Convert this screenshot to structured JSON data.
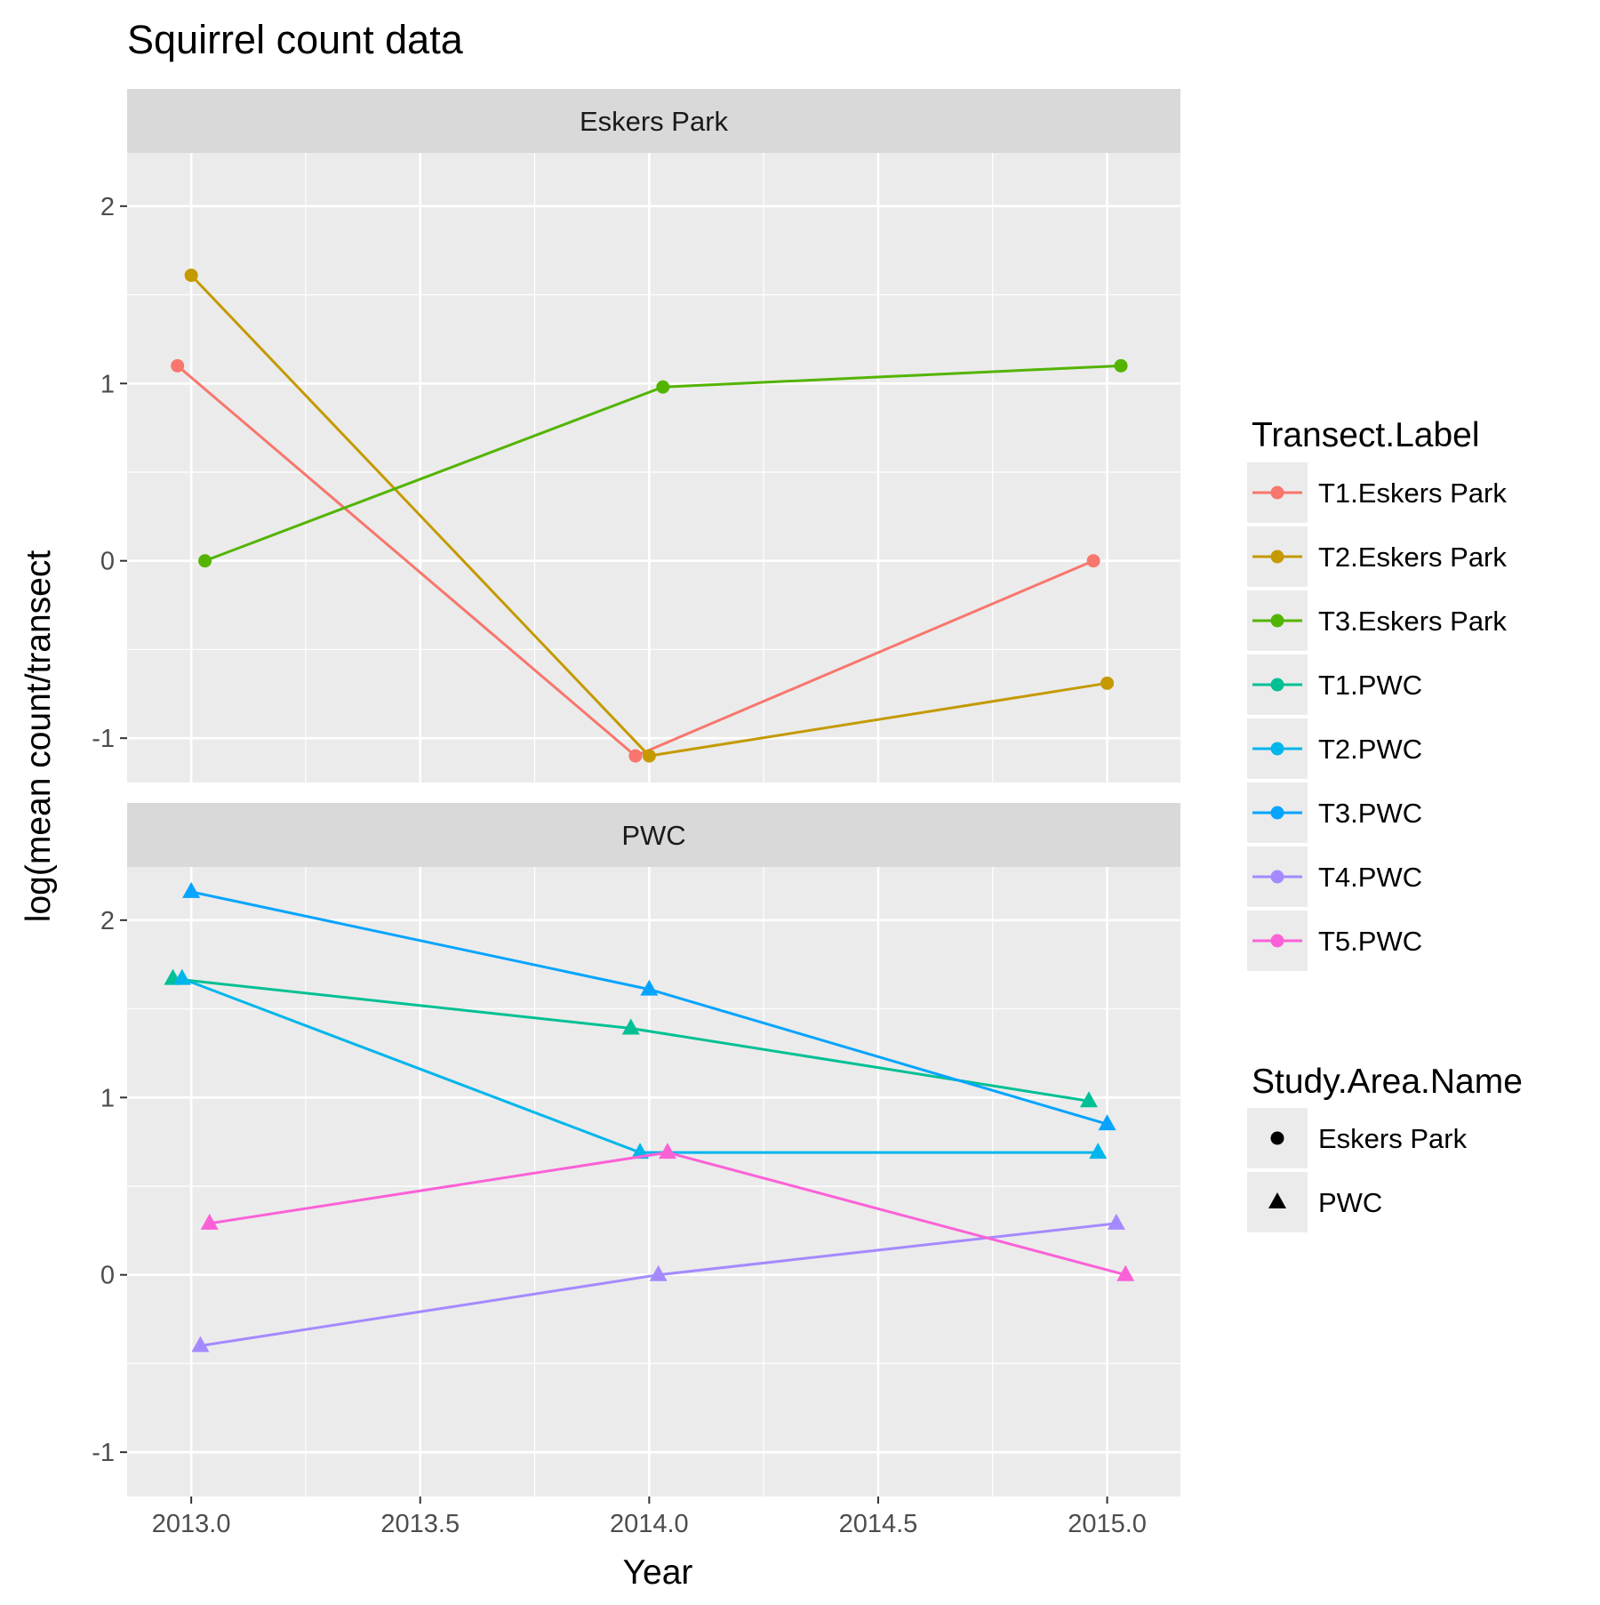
{
  "chart_data": {
    "type": "line",
    "title": "Squirrel count data",
    "xlabel": "Year",
    "ylabel": "log(mean count/transect",
    "xlim": [
      2012.86,
      2015.16
    ],
    "ylim": [
      -1.25,
      2.3
    ],
    "x_ticks": [
      2013.0,
      2013.5,
      2014.0,
      2014.5,
      2015.0
    ],
    "x_tick_labels": [
      "2013.0",
      "2013.5",
      "2014.0",
      "2014.5",
      "2015.0"
    ],
    "y_ticks": [
      -1,
      0,
      1,
      2
    ],
    "y_tick_labels": [
      "-1",
      "0",
      "1",
      "2"
    ],
    "grid": true,
    "panels": [
      "Eskers Park",
      "PWC"
    ],
    "series": [
      {
        "name": "T1.Eskers Park",
        "panel": "Eskers Park",
        "shape": "circle",
        "color": "#F8766D",
        "x": [
          2012.97,
          2013.97,
          2014.97
        ],
        "y": [
          1.1,
          -1.1,
          0.0
        ]
      },
      {
        "name": "T2.Eskers Park",
        "panel": "Eskers Park",
        "shape": "circle",
        "color": "#C49A00",
        "x": [
          2013.0,
          2014.0,
          2015.0
        ],
        "y": [
          1.61,
          -1.1,
          -0.69
        ]
      },
      {
        "name": "T3.Eskers Park",
        "panel": "Eskers Park",
        "shape": "circle",
        "color": "#53B400",
        "x": [
          2013.03,
          2014.03,
          2015.03
        ],
        "y": [
          0.0,
          0.98,
          1.1
        ]
      },
      {
        "name": "T1.PWC",
        "panel": "PWC",
        "shape": "triangle",
        "color": "#00C094",
        "x": [
          2012.96,
          2013.96,
          2014.96
        ],
        "y": [
          1.67,
          1.39,
          0.98
        ]
      },
      {
        "name": "T2.PWC",
        "panel": "PWC",
        "shape": "triangle",
        "color": "#00B6EB",
        "x": [
          2012.98,
          2013.98,
          2014.98
        ],
        "y": [
          1.67,
          0.69,
          0.69
        ]
      },
      {
        "name": "T3.PWC",
        "panel": "PWC",
        "shape": "triangle",
        "color": "#06A4FF",
        "x": [
          2013.0,
          2014.0,
          2015.0
        ],
        "y": [
          2.16,
          1.61,
          0.85
        ]
      },
      {
        "name": "T4.PWC",
        "panel": "PWC",
        "shape": "triangle",
        "color": "#A58AFF",
        "x": [
          2013.02,
          2014.02,
          2015.02
        ],
        "y": [
          -0.4,
          0.0,
          0.29
        ]
      },
      {
        "name": "T5.PWC",
        "panel": "PWC",
        "shape": "triangle",
        "color": "#FB61D7",
        "x": [
          2013.04,
          2014.04,
          2015.04
        ],
        "y": [
          0.29,
          0.69,
          0.0
        ]
      }
    ],
    "legend": {
      "position": "right",
      "color_title": "Transect.Label",
      "shape_title": "Study.Area.Name",
      "shape_entries": [
        {
          "label": "Eskers Park",
          "shape": "circle"
        },
        {
          "label": "PWC",
          "shape": "triangle"
        }
      ]
    },
    "colors": {
      "panel_background": "#EBEBEB",
      "strip_background": "#D9D9D9",
      "grid_major": "#FFFFFF",
      "tick_text": "#4D4D4D"
    }
  }
}
